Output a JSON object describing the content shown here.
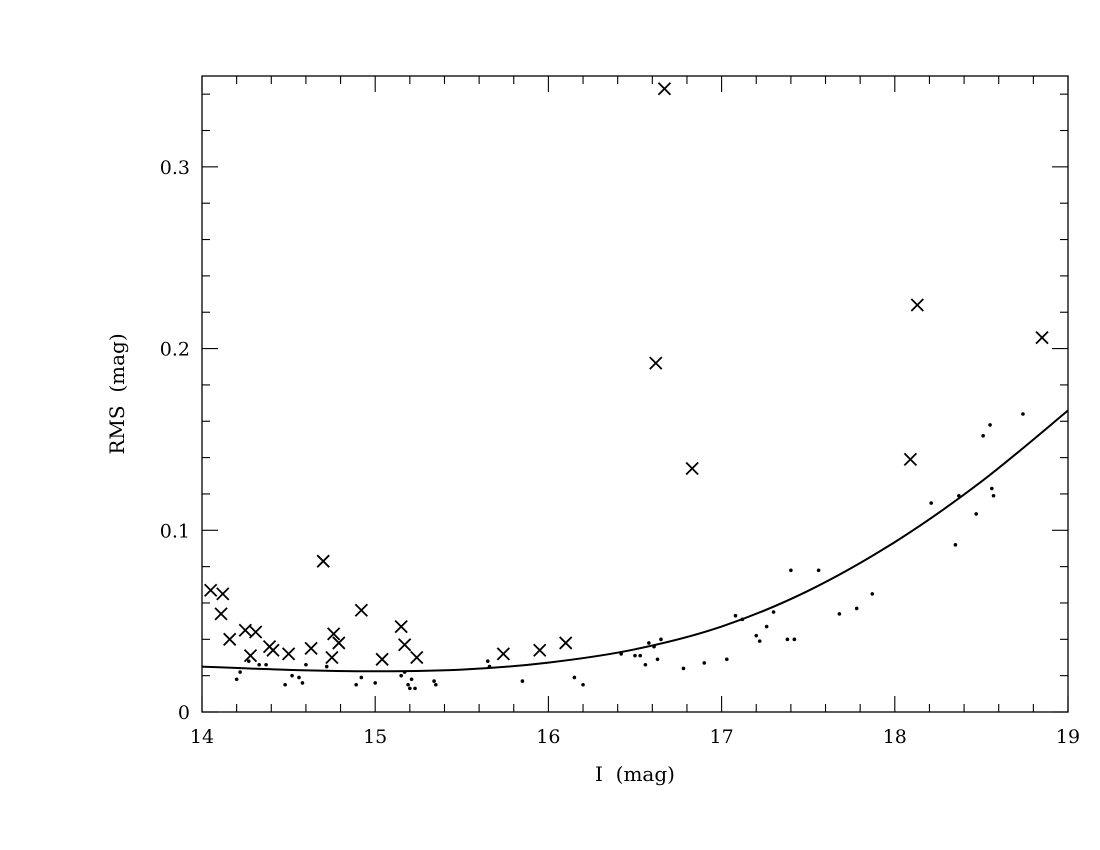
{
  "chart_data": {
    "type": "scatter",
    "xlabel": "I  (mag)",
    "ylabel": "RMS  (mag)",
    "xlim": [
      14,
      19
    ],
    "ylim": [
      0,
      0.35
    ],
    "x_major_ticks": [
      14,
      15,
      16,
      17,
      18,
      19
    ],
    "x_minor_step": 0.2,
    "y_major_ticks": [
      0,
      0.1,
      0.2,
      0.3
    ],
    "y_tick_labels": [
      "0",
      "0.1",
      "0.2",
      "0.3"
    ],
    "y_minor_step": 0.02,
    "grid": false,
    "series": [
      {
        "marker": "x",
        "points": [
          [
            14.05,
            0.067
          ],
          [
            14.12,
            0.065
          ],
          [
            14.11,
            0.054
          ],
          [
            14.16,
            0.04
          ],
          [
            14.25,
            0.045
          ],
          [
            14.28,
            0.031
          ],
          [
            14.31,
            0.044
          ],
          [
            14.39,
            0.036
          ],
          [
            14.41,
            0.034
          ],
          [
            14.5,
            0.032
          ],
          [
            14.63,
            0.035
          ],
          [
            14.7,
            0.083
          ],
          [
            14.75,
            0.03
          ],
          [
            14.76,
            0.043
          ],
          [
            14.79,
            0.038
          ],
          [
            14.92,
            0.056
          ],
          [
            15.04,
            0.029
          ],
          [
            15.15,
            0.047
          ],
          [
            15.17,
            0.037
          ],
          [
            15.24,
            0.03
          ],
          [
            15.74,
            0.032
          ],
          [
            15.95,
            0.034
          ],
          [
            16.1,
            0.038
          ],
          [
            16.62,
            0.192
          ],
          [
            16.67,
            0.343
          ],
          [
            16.83,
            0.134
          ],
          [
            18.09,
            0.139
          ],
          [
            18.13,
            0.224
          ],
          [
            18.85,
            0.206
          ]
        ]
      },
      {
        "marker": "dot",
        "points": [
          [
            14.2,
            0.018
          ],
          [
            14.22,
            0.022
          ],
          [
            14.27,
            0.028
          ],
          [
            14.33,
            0.026
          ],
          [
            14.37,
            0.026
          ],
          [
            14.48,
            0.015
          ],
          [
            14.52,
            0.02
          ],
          [
            14.56,
            0.019
          ],
          [
            14.58,
            0.016
          ],
          [
            14.6,
            0.026
          ],
          [
            14.72,
            0.025
          ],
          [
            14.89,
            0.015
          ],
          [
            14.92,
            0.019
          ],
          [
            15.0,
            0.016
          ],
          [
            15.15,
            0.02
          ],
          [
            15.17,
            0.022
          ],
          [
            15.19,
            0.015
          ],
          [
            15.2,
            0.013
          ],
          [
            15.21,
            0.018
          ],
          [
            15.23,
            0.013
          ],
          [
            15.34,
            0.017
          ],
          [
            15.35,
            0.015
          ],
          [
            15.65,
            0.028
          ],
          [
            15.66,
            0.025
          ],
          [
            15.85,
            0.017
          ],
          [
            16.15,
            0.019
          ],
          [
            16.2,
            0.015
          ],
          [
            16.42,
            0.032
          ],
          [
            16.5,
            0.031
          ],
          [
            16.53,
            0.031
          ],
          [
            16.56,
            0.026
          ],
          [
            16.58,
            0.038
          ],
          [
            16.61,
            0.036
          ],
          [
            16.63,
            0.029
          ],
          [
            16.65,
            0.04
          ],
          [
            16.78,
            0.024
          ],
          [
            16.9,
            0.027
          ],
          [
            17.03,
            0.029
          ],
          [
            17.08,
            0.053
          ],
          [
            17.12,
            0.051
          ],
          [
            17.2,
            0.042
          ],
          [
            17.22,
            0.039
          ],
          [
            17.26,
            0.047
          ],
          [
            17.3,
            0.055
          ],
          [
            17.38,
            0.04
          ],
          [
            17.4,
            0.078
          ],
          [
            17.42,
            0.04
          ],
          [
            17.56,
            0.078
          ],
          [
            17.68,
            0.054
          ],
          [
            17.78,
            0.057
          ],
          [
            17.87,
            0.065
          ],
          [
            18.21,
            0.115
          ],
          [
            18.35,
            0.092
          ],
          [
            18.37,
            0.119
          ],
          [
            18.47,
            0.109
          ],
          [
            18.51,
            0.152
          ],
          [
            18.55,
            0.158
          ],
          [
            18.56,
            0.123
          ],
          [
            18.57,
            0.119
          ],
          [
            18.74,
            0.164
          ]
        ]
      },
      {
        "marker": "line",
        "points": [
          [
            14.0,
            0.025
          ],
          [
            14.5,
            0.0232
          ],
          [
            15.0,
            0.0224
          ],
          [
            15.5,
            0.0233
          ],
          [
            16.0,
            0.0272
          ],
          [
            16.5,
            0.0345
          ],
          [
            17.0,
            0.047
          ],
          [
            17.5,
            0.0667
          ],
          [
            18.0,
            0.0935
          ],
          [
            18.5,
            0.1268
          ],
          [
            19.0,
            0.1659
          ]
        ]
      }
    ]
  }
}
